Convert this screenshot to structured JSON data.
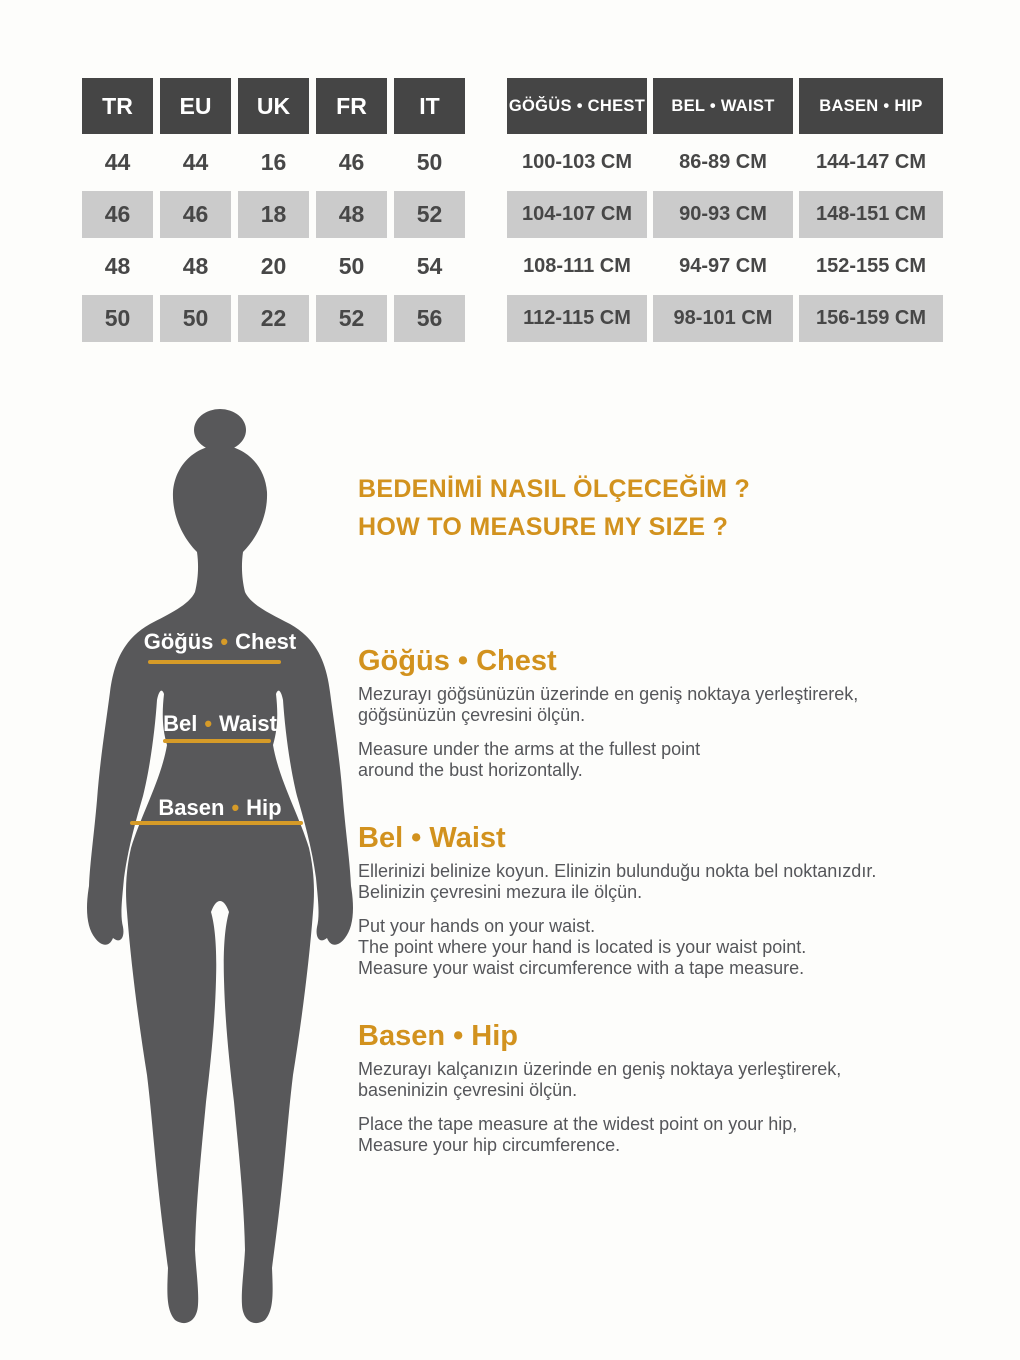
{
  "colors": {
    "page_bg": "#fdfdfb",
    "accent": "#d2921e",
    "accent_line": "#d69b28",
    "header_bg": "#454545",
    "alt_row": "#cbcbcb",
    "cell_text": "#474747",
    "text": "#55565a",
    "silhouette": "#58585a"
  },
  "size_table": {
    "headers": [
      "TR",
      "EU",
      "UK",
      "FR",
      "IT"
    ],
    "rows": [
      [
        "44",
        "44",
        "16",
        "46",
        "50"
      ],
      [
        "46",
        "46",
        "18",
        "48",
        "52"
      ],
      [
        "48",
        "48",
        "20",
        "50",
        "54"
      ],
      [
        "50",
        "50",
        "22",
        "52",
        "56"
      ]
    ]
  },
  "measure_table": {
    "headers": [
      "GÖĞÜS • CHEST",
      "BEL • WAIST",
      "BASEN • HIP"
    ],
    "rows": [
      [
        "100-103 CM",
        "86-89 CM",
        "144-147 CM"
      ],
      [
        "104-107 CM",
        "90-93 CM",
        "148-151 CM"
      ],
      [
        "108-111 CM",
        "94-97 CM",
        "152-155 CM"
      ],
      [
        "112-115 CM",
        "98-101 CM",
        "156-159 CM"
      ]
    ]
  },
  "figure": {
    "sep": "•",
    "labels": [
      {
        "tr": "Göğüs",
        "en": "Chest"
      },
      {
        "tr": "Bel",
        "en": "Waist"
      },
      {
        "tr": "Basen",
        "en": "Hip"
      }
    ]
  },
  "guide": {
    "title_tr": "BEDENİMİ NASIL ÖLÇECEĞİM ?",
    "title_en": "HOW TO MEASURE MY SIZE ?",
    "sections": [
      {
        "heading": "Göğüs • Chest",
        "tr_lines": [
          "Mezurayı göğsünüzün üzerinde en geniş noktaya yerleştirerek,",
          "göğsünüzün çevresini ölçün."
        ],
        "en_lines": [
          "Measure under the arms at the fullest point",
          "around the bust horizontally."
        ]
      },
      {
        "heading": "Bel • Waist",
        "tr_lines": [
          "Ellerinizi belinize koyun. Elinizin bulunduğu nokta bel noktanızdır.",
          "Belinizin çevresini mezura ile ölçün."
        ],
        "en_lines": [
          "Put your hands on your waist.",
          "The point where your hand is located is your waist point.",
          "Measure your waist circumference with a tape measure."
        ]
      },
      {
        "heading": "Basen • Hip",
        "tr_lines": [
          "Mezurayı kalçanızın üzerinde en geniş noktaya yerleştirerek,",
          "baseninizin çevresini ölçün."
        ],
        "en_lines": [
          "Place the tape measure at the widest point on your hip,",
          "Measure your hip circumference."
        ]
      }
    ]
  }
}
